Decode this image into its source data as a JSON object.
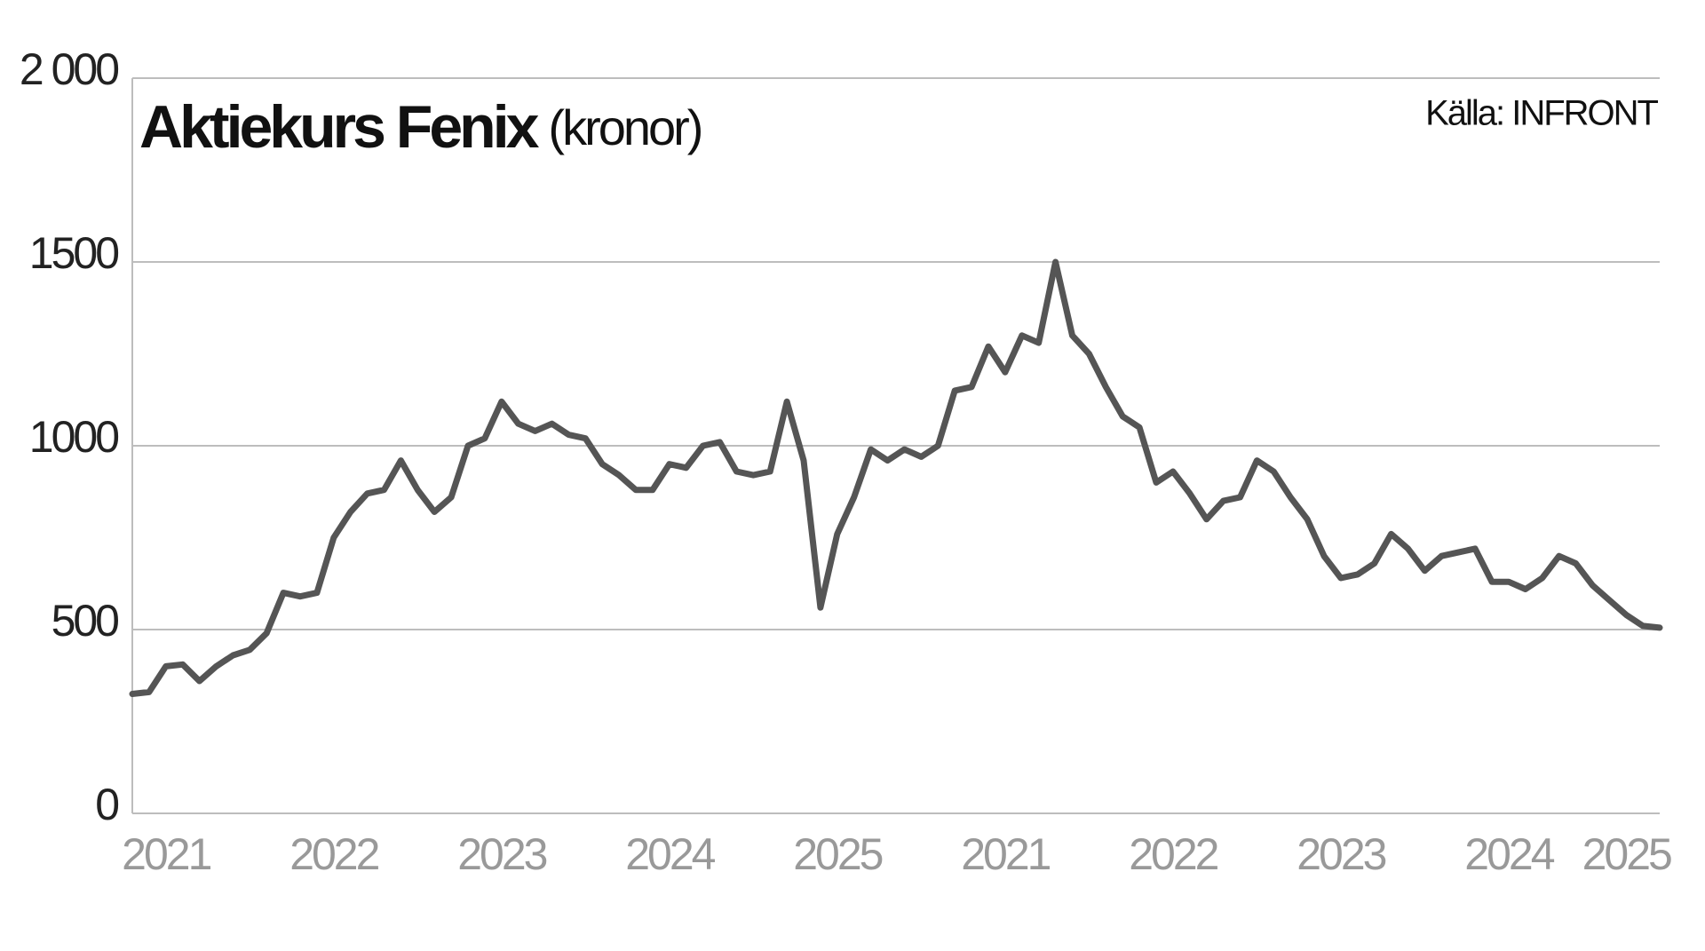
{
  "chart_data": {
    "type": "line",
    "title": "Aktiekurs Fenix",
    "subtitle": "(kronor)",
    "source": "Källa: INFRONT",
    "categories": [
      null,
      null,
      "2021",
      null,
      null,
      null,
      null,
      null,
      null,
      null,
      null,
      null,
      "2022",
      null,
      null,
      null,
      null,
      null,
      null,
      null,
      null,
      null,
      "2023",
      null,
      null,
      null,
      null,
      null,
      null,
      null,
      null,
      null,
      "2024",
      null,
      null,
      null,
      null,
      null,
      null,
      null,
      null,
      null,
      "2025",
      null,
      null,
      null,
      null,
      null,
      null,
      null,
      null,
      null,
      "2021",
      null,
      null,
      null,
      null,
      null,
      null,
      null,
      null,
      null,
      "2022",
      null,
      null,
      null,
      null,
      null,
      null,
      null,
      null,
      null,
      "2023",
      null,
      null,
      null,
      null,
      null,
      null,
      null,
      null,
      null,
      "2024",
      null,
      null,
      null,
      null,
      null,
      null,
      "2025",
      null,
      null
    ],
    "values": [
      325,
      330,
      400,
      405,
      360,
      400,
      430,
      445,
      490,
      600,
      590,
      600,
      750,
      820,
      870,
      880,
      960,
      880,
      820,
      860,
      1000,
      1020,
      1120,
      1060,
      1040,
      1060,
      1030,
      1020,
      950,
      920,
      880,
      880,
      950,
      940,
      1000,
      1010,
      930,
      920,
      930,
      1120,
      960,
      560,
      760,
      860,
      990,
      960,
      990,
      970,
      1000,
      1150,
      1160,
      1270,
      1200,
      1300,
      1280,
      1500,
      1300,
      1250,
      1160,
      1080,
      1050,
      900,
      930,
      870,
      800,
      850,
      860,
      960,
      930,
      860,
      800,
      700,
      640,
      650,
      680,
      760,
      720,
      660,
      700,
      710,
      720,
      630,
      630,
      610,
      640,
      700,
      680,
      620,
      580,
      540,
      510,
      505
    ],
    "color": "#555555",
    "ylim": [
      0,
      2000
    ],
    "yticks": [
      0,
      500,
      1000,
      1500,
      {
        "value": 2000,
        "label": "2 000"
      }
    ],
    "grid": true
  }
}
